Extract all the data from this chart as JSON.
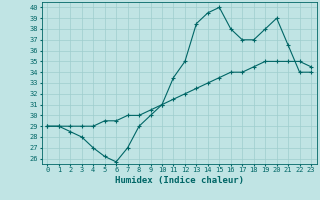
{
  "xlabel": "Humidex (Indice chaleur)",
  "xlim": [
    -0.5,
    23.5
  ],
  "ylim": [
    25.5,
    40.5
  ],
  "yticks": [
    26,
    27,
    28,
    29,
    30,
    31,
    32,
    33,
    34,
    35,
    36,
    37,
    38,
    39,
    40
  ],
  "xticks": [
    0,
    1,
    2,
    3,
    4,
    5,
    6,
    7,
    8,
    9,
    10,
    11,
    12,
    13,
    14,
    15,
    16,
    17,
    18,
    19,
    20,
    21,
    22,
    23
  ],
  "bg_color": "#c0e4e4",
  "line_color": "#006666",
  "grid_color": "#9ecece",
  "curve1_x": [
    0,
    1,
    2,
    3,
    4,
    5,
    6,
    7,
    8,
    9,
    10,
    11,
    12,
    13,
    14,
    15,
    16,
    17,
    18,
    19,
    20,
    21,
    22,
    23
  ],
  "curve1_y": [
    29,
    29,
    28.5,
    28,
    27,
    26.2,
    25.7,
    27,
    29,
    30,
    31,
    33.5,
    35,
    38.5,
    39.5,
    40,
    38,
    37,
    37,
    38,
    39,
    36.5,
    34,
    34
  ],
  "curve2_x": [
    0,
    1,
    2,
    3,
    4,
    5,
    6,
    7,
    8,
    9,
    10,
    11,
    12,
    13,
    14,
    15,
    16,
    17,
    18,
    19,
    20,
    21,
    22,
    23
  ],
  "curve2_y": [
    29,
    29,
    29,
    29,
    29,
    29.5,
    29.5,
    30,
    30,
    30.5,
    31,
    31.5,
    32,
    32.5,
    33,
    33.5,
    34,
    34,
    34.5,
    35,
    35,
    35,
    35,
    34.5
  ],
  "xlabel_fontsize": 6.5,
  "tick_fontsize": 5.0
}
